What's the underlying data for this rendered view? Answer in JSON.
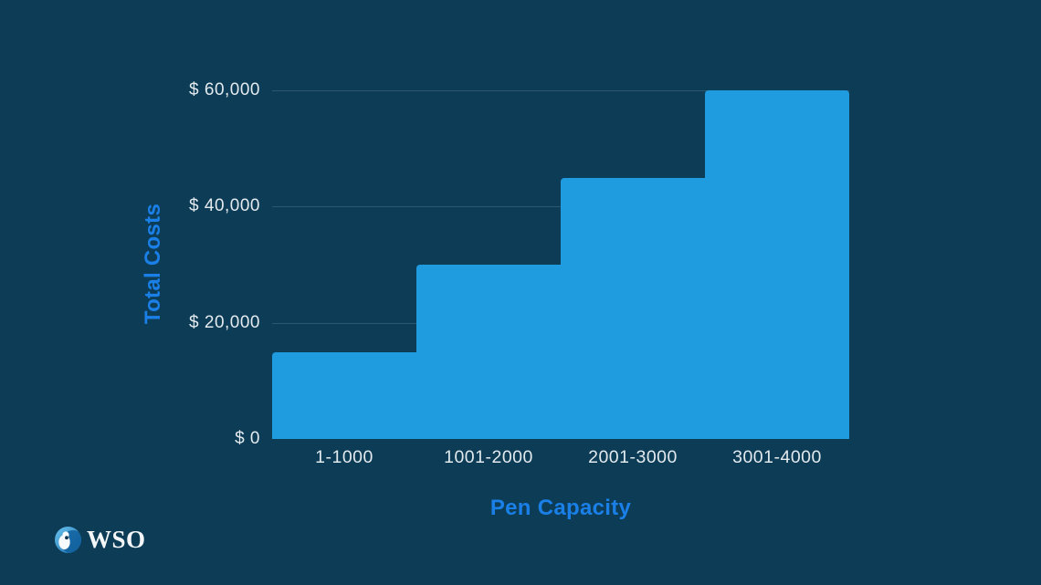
{
  "theme": {
    "background": "#0d3c57",
    "bar_color": "#1f9ce0",
    "accent_blue": "#1a80e8",
    "tick_text": "#e3eaee",
    "grid_line": "rgba(216,230,239,0.16)"
  },
  "branding": {
    "logo_text": "WSO"
  },
  "chart_data": {
    "type": "bar",
    "subtype": "step-area",
    "title": "",
    "categories": [
      "1-1000",
      "1001-2000",
      "2001-3000",
      "3001-4000"
    ],
    "values": [
      15000,
      30000,
      45000,
      60000
    ],
    "xlabel": "Pen Capacity",
    "ylabel": "Total Costs",
    "ylim": [
      0,
      60000
    ],
    "yticks": [
      {
        "value": 0,
        "label": "$ 0"
      },
      {
        "value": 20000,
        "label": "$ 20,000"
      },
      {
        "value": 40000,
        "label": "$ 40,000"
      },
      {
        "value": 60000,
        "label": "$ 60,000"
      }
    ],
    "grid": true,
    "legend": false
  }
}
